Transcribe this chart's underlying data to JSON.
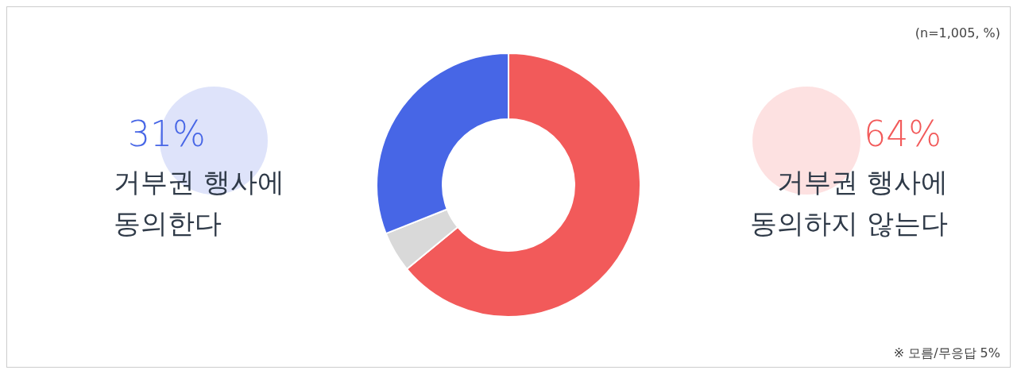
{
  "chart_data": {
    "type": "donut",
    "categories": [
      "거부권 행사에\n동의하지 않는다",
      null,
      "거부권 행사에\n동의한다"
    ],
    "values": [
      64,
      5,
      31
    ],
    "colors": [
      "#f25a5a",
      "#d9d9d9",
      "#4766e6"
    ],
    "value_labels": [
      "64%",
      null,
      "31%"
    ],
    "annotations": [
      "(n=1,005, %)",
      "※ 모름/무응답 5%"
    ]
  }
}
